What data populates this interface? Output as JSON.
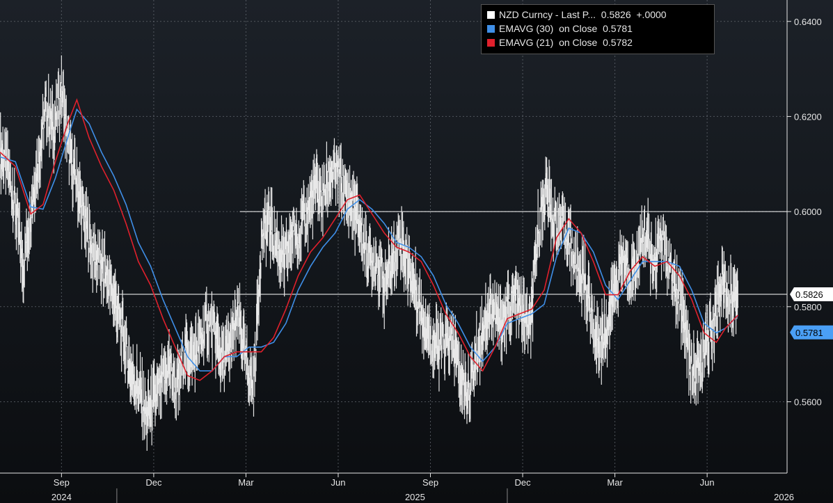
{
  "chart_data": {
    "type": "line",
    "title": "",
    "ylim": [
      0.545,
      0.6445
    ],
    "y_ticks": [
      "0.6400",
      "0.6200",
      "0.6000",
      "0.5800",
      "0.5600"
    ],
    "y_tick_values": [
      0.64,
      0.62,
      0.6,
      0.58,
      0.56
    ],
    "x_month_labels": [
      "Sep",
      "Dec",
      "Mar",
      "Jun",
      "Sep",
      "Dec",
      "Mar",
      "Jun"
    ],
    "x_month_positions": [
      8.5,
      11.5,
      14.5,
      17.5,
      20.5,
      23.5,
      26.5,
      29.5
    ],
    "x_year_labels": [
      "2024",
      "2025",
      "2026"
    ],
    "x_year_positions": [
      8.5,
      20.0,
      32.0
    ],
    "x_domain": [
      6.5,
      32.1
    ],
    "grid": true,
    "legend_position": "top-right",
    "reference_lines": [
      {
        "value": 0.6,
        "start": 14.3,
        "end": 32.1,
        "color": "#ffffff"
      },
      {
        "value": 0.5826,
        "start": 10.2,
        "end": 32.1,
        "color": "#ffffff"
      }
    ],
    "series": [
      {
        "name": "NZD Curncy - Last P...",
        "kind": "price",
        "color": "#e8e8e8",
        "last": "0.5826",
        "change": "+.0000",
        "x": [
          6.5,
          6.75,
          7.0,
          7.25,
          7.5,
          7.75,
          8.0,
          8.25,
          8.5,
          8.75,
          9.0,
          9.25,
          9.5,
          9.75,
          10.0,
          10.25,
          10.5,
          10.75,
          11.0,
          11.25,
          11.5,
          11.75,
          12.0,
          12.25,
          12.5,
          12.75,
          13.0,
          13.25,
          13.5,
          13.75,
          14.0,
          14.25,
          14.5,
          14.75,
          15.0,
          15.25,
          15.5,
          15.75,
          16.0,
          16.25,
          16.5,
          16.75,
          17.0,
          17.25,
          17.5,
          17.75,
          18.0,
          18.25,
          18.5,
          18.75,
          19.0,
          19.25,
          19.5,
          19.75,
          20.0,
          20.25,
          20.5,
          20.75,
          21.0,
          21.25,
          21.5,
          21.75,
          22.0,
          22.25,
          22.5,
          22.75,
          23.0,
          23.25,
          23.5,
          23.75,
          24.0,
          24.25,
          24.5,
          24.75,
          25.0,
          25.25,
          25.5,
          25.75,
          26.0,
          26.25,
          26.5,
          26.75,
          27.0,
          27.25,
          27.5,
          27.75,
          28.0,
          28.25,
          28.5,
          28.75,
          29.0,
          29.25,
          29.5,
          29.75,
          30.0,
          30.25,
          30.5
        ],
        "values": [
          0.613,
          0.609,
          0.601,
          0.588,
          0.601,
          0.611,
          0.622,
          0.617,
          0.626,
          0.612,
          0.606,
          0.598,
          0.592,
          0.589,
          0.586,
          0.581,
          0.574,
          0.566,
          0.563,
          0.557,
          0.56,
          0.563,
          0.568,
          0.562,
          0.571,
          0.569,
          0.572,
          0.577,
          0.574,
          0.568,
          0.572,
          0.578,
          0.568,
          0.563,
          0.594,
          0.598,
          0.593,
          0.589,
          0.595,
          0.596,
          0.6,
          0.605,
          0.603,
          0.608,
          0.608,
          0.603,
          0.601,
          0.596,
          0.59,
          0.59,
          0.585,
          0.589,
          0.595,
          0.589,
          0.584,
          0.578,
          0.574,
          0.571,
          0.573,
          0.572,
          0.565,
          0.562,
          0.57,
          0.577,
          0.58,
          0.576,
          0.579,
          0.582,
          0.578,
          0.575,
          0.596,
          0.605,
          0.598,
          0.597,
          0.595,
          0.588,
          0.586,
          0.578,
          0.572,
          0.576,
          0.584,
          0.59,
          0.587,
          0.59,
          0.596,
          0.588,
          0.595,
          0.588,
          0.583,
          0.578,
          0.566,
          0.567,
          0.572,
          0.578,
          0.586,
          0.5826,
          0.5826
        ]
      },
      {
        "name": "EMAVG (30)  on Close",
        "kind": "ema",
        "color": "#3f8fe8",
        "last": "0.5781",
        "x": [
          6.5,
          7.0,
          7.5,
          7.9,
          8.3,
          8.7,
          9.0,
          9.4,
          9.8,
          10.2,
          10.6,
          11.0,
          11.4,
          11.8,
          12.2,
          12.6,
          13.0,
          13.4,
          13.8,
          14.2,
          14.6,
          15.0,
          15.4,
          15.8,
          16.2,
          16.6,
          17.0,
          17.4,
          17.8,
          18.2,
          18.6,
          19.0,
          19.4,
          19.8,
          20.2,
          20.6,
          21.0,
          21.4,
          21.8,
          22.2,
          22.6,
          23.0,
          23.4,
          23.8,
          24.2,
          24.6,
          25.0,
          25.4,
          25.8,
          26.2,
          26.6,
          27.0,
          27.4,
          27.8,
          28.2,
          28.6,
          29.0,
          29.4,
          29.8,
          30.1,
          30.5
        ],
        "values": [
          0.6115,
          0.6105,
          0.601,
          0.6005,
          0.607,
          0.6155,
          0.6215,
          0.6185,
          0.6125,
          0.6075,
          0.6015,
          0.5935,
          0.5885,
          0.5815,
          0.5755,
          0.5695,
          0.5665,
          0.5665,
          0.5695,
          0.5695,
          0.5715,
          0.5715,
          0.5725,
          0.5765,
          0.5835,
          0.5885,
          0.5925,
          0.5955,
          0.6005,
          0.6025,
          0.6005,
          0.5975,
          0.5935,
          0.5925,
          0.5905,
          0.5865,
          0.5805,
          0.5765,
          0.5715,
          0.5685,
          0.5715,
          0.5765,
          0.5775,
          0.5785,
          0.5805,
          0.5905,
          0.5965,
          0.5955,
          0.5915,
          0.5845,
          0.5815,
          0.5855,
          0.5895,
          0.5895,
          0.5895,
          0.5885,
          0.5835,
          0.5765,
          0.5745,
          0.5755,
          0.5781
        ]
      },
      {
        "name": "EMAVG (21)  on Close",
        "kind": "ema",
        "color": "#e0202c",
        "last": "0.5782",
        "x": [
          6.5,
          7.0,
          7.5,
          7.9,
          8.3,
          8.7,
          9.0,
          9.4,
          9.8,
          10.2,
          10.6,
          11.0,
          11.4,
          11.8,
          12.2,
          12.6,
          13.0,
          13.4,
          13.8,
          14.2,
          14.6,
          15.0,
          15.4,
          15.8,
          16.2,
          16.6,
          17.0,
          17.4,
          17.8,
          18.2,
          18.6,
          19.0,
          19.4,
          19.8,
          20.2,
          20.6,
          21.0,
          21.4,
          21.8,
          22.2,
          22.6,
          23.0,
          23.4,
          23.8,
          24.2,
          24.6,
          25.0,
          25.4,
          25.8,
          26.2,
          26.6,
          27.0,
          27.4,
          27.8,
          28.2,
          28.6,
          29.0,
          29.4,
          29.8,
          30.1,
          30.5
        ],
        "values": [
          0.6125,
          0.6095,
          0.5995,
          0.6015,
          0.6105,
          0.6185,
          0.6235,
          0.6155,
          0.6095,
          0.6045,
          0.5975,
          0.5895,
          0.5845,
          0.5775,
          0.5715,
          0.5655,
          0.5645,
          0.5665,
          0.5695,
          0.5705,
          0.5705,
          0.5705,
          0.5735,
          0.5795,
          0.5865,
          0.5915,
          0.5945,
          0.5985,
          0.6025,
          0.6035,
          0.5995,
          0.5955,
          0.5925,
          0.5915,
          0.5895,
          0.5845,
          0.5785,
          0.5745,
          0.5695,
          0.5665,
          0.5715,
          0.5775,
          0.5785,
          0.5795,
          0.5835,
          0.5945,
          0.5985,
          0.5955,
          0.5895,
          0.5825,
          0.5825,
          0.5875,
          0.5905,
          0.5885,
          0.5895,
          0.5865,
          0.5815,
          0.5745,
          0.5725,
          0.5755,
          0.5782
        ]
      }
    ],
    "price_tags": [
      {
        "label": "0.5826",
        "value": 0.5826,
        "bg": "#ffffff",
        "fg": "#000000"
      },
      {
        "label": "0.5781",
        "value": 0.5781,
        "bg": "#4a9ff5",
        "fg": "#000000"
      }
    ]
  },
  "legend": {
    "rows": [
      {
        "label": "NZD Curncy - Last P...  0.5826  +.0000",
        "color": "#ffffff"
      },
      {
        "label": "EMAVG (30)  on Close  0.5781",
        "color": "#3f8fe8"
      },
      {
        "label": "EMAVG (21)  on Close  0.5782",
        "color": "#e0202c"
      }
    ]
  }
}
